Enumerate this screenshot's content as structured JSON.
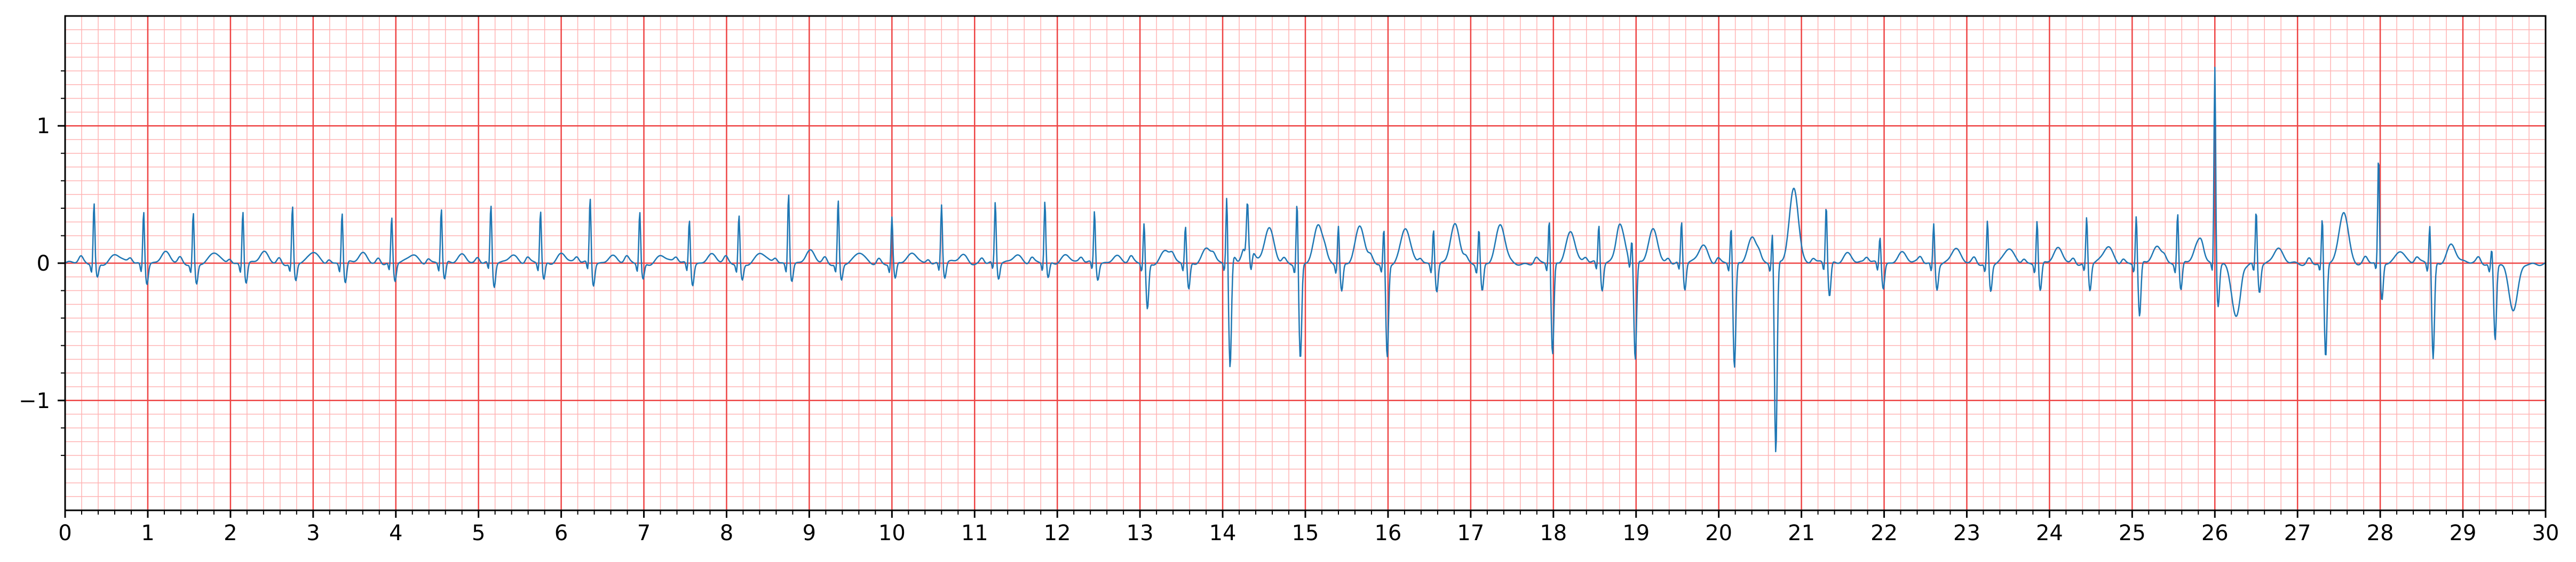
{
  "chart_data": {
    "type": "line",
    "title": "",
    "xlabel": "",
    "ylabel": "",
    "xlim": [
      0,
      30
    ],
    "ylim": [
      -1.8,
      1.8
    ],
    "x_ticks": [
      0,
      1,
      2,
      3,
      4,
      5,
      6,
      7,
      8,
      9,
      10,
      11,
      12,
      13,
      14,
      15,
      16,
      17,
      18,
      19,
      20,
      21,
      22,
      23,
      24,
      25,
      26,
      27,
      28,
      29,
      30
    ],
    "x_tick_labels": [
      "0",
      "1",
      "2",
      "3",
      "4",
      "5",
      "6",
      "7",
      "8",
      "9",
      "10",
      "11",
      "12",
      "13",
      "14",
      "15",
      "16",
      "17",
      "18",
      "19",
      "20",
      "21",
      "22",
      "23",
      "24",
      "25",
      "26",
      "27",
      "28",
      "29",
      "30"
    ],
    "y_ticks": [
      -1,
      0,
      1
    ],
    "y_tick_labels": [
      "−1",
      "0",
      "1"
    ],
    "grid": {
      "major_x_step": 1,
      "major_y_step": 1,
      "minor_x_step": 0.2,
      "minor_y_step": 0.1,
      "major_color": "#ee4444",
      "minor_color": "#ffb3b3"
    },
    "line_color": "#1f77b4",
    "beat_times": [
      0.35,
      0.95,
      1.55,
      2.15,
      2.75,
      3.35,
      3.95,
      4.55,
      5.15,
      5.75,
      6.35,
      6.95,
      7.55,
      8.15,
      8.75,
      9.35,
      10.0,
      10.6,
      11.25,
      11.85,
      12.45,
      13.05,
      13.55,
      14.05,
      14.3,
      14.9,
      15.4,
      15.95,
      16.55,
      17.1,
      17.95,
      18.55,
      18.95,
      19.55,
      20.15,
      20.65,
      21.3,
      21.95,
      22.6,
      23.25,
      23.85,
      24.45,
      25.05,
      25.55,
      26.0,
      26.5,
      27.3,
      27.98,
      28.6,
      29.35
    ],
    "beat_amplitudes": [
      0.45,
      0.4,
      0.38,
      0.4,
      0.42,
      0.38,
      0.33,
      0.4,
      0.42,
      0.38,
      0.48,
      0.38,
      0.33,
      0.36,
      0.53,
      0.47,
      0.34,
      0.43,
      0.44,
      0.45,
      0.38,
      0.3,
      0.27,
      0.5,
      0.27,
      0.48,
      0.29,
      0.28,
      0.27,
      0.27,
      0.33,
      0.28,
      0.18,
      0.3,
      0.28,
      0.25,
      0.43,
      0.2,
      0.3,
      0.32,
      0.33,
      0.34,
      0.36,
      0.38,
      1.45,
      0.4,
      0.34,
      0.78,
      0.3,
      0.12
    ],
    "beat_depths": [
      -0.1,
      -0.14,
      -0.15,
      -0.14,
      -0.13,
      -0.15,
      -0.14,
      -0.13,
      -0.18,
      -0.13,
      -0.16,
      -0.12,
      -0.15,
      -0.12,
      -0.12,
      -0.12,
      -0.12,
      -0.11,
      -0.12,
      -0.12,
      -0.12,
      -0.34,
      -0.2,
      -0.78,
      -0.2,
      -0.7,
      -0.2,
      -0.68,
      -0.2,
      -0.2,
      -0.68,
      -0.2,
      -0.72,
      -0.2,
      -0.78,
      -1.4,
      -0.25,
      -0.18,
      -0.18,
      -0.2,
      -0.2,
      -0.2,
      -0.4,
      -0.2,
      -0.3,
      -0.2,
      -0.7,
      -0.28,
      -0.7,
      -0.55
    ],
    "t_waves": [
      0.06,
      0.07,
      0.07,
      0.07,
      0.08,
      0.07,
      0.07,
      0.07,
      0.07,
      0.08,
      0.06,
      0.06,
      0.06,
      0.07,
      0.08,
      0.07,
      0.07,
      0.06,
      0.07,
      0.07,
      0.06,
      0.1,
      0.12,
      0.2,
      0.25,
      0.27,
      0.26,
      0.25,
      0.27,
      0.27,
      0.24,
      0.26,
      0.25,
      0.14,
      0.2,
      0.55,
      0.08,
      0.08,
      0.1,
      0.1,
      0.1,
      0.12,
      0.12,
      0.15,
      -0.4,
      0.1,
      0.38,
      0.1,
      0.14,
      -0.35
    ],
    "sample_rate_hz": 125
  }
}
